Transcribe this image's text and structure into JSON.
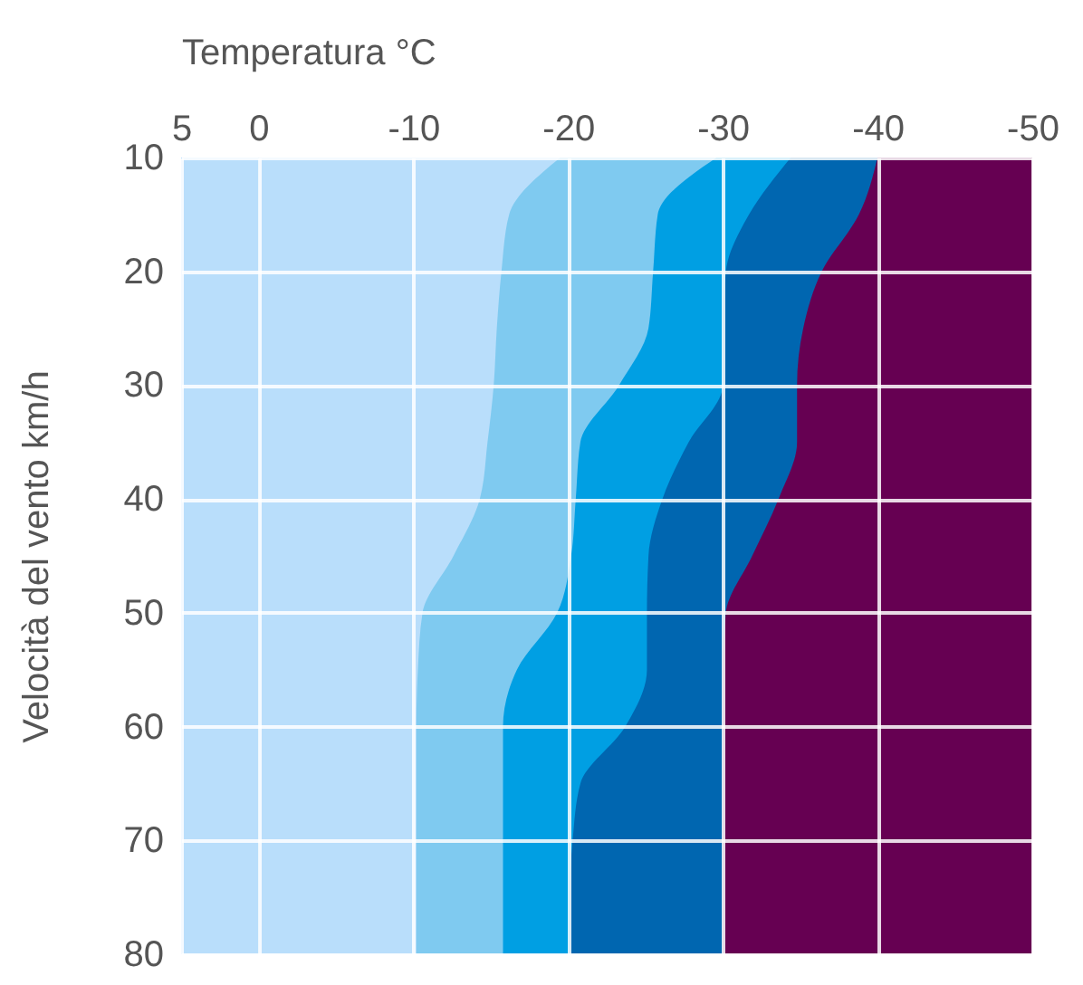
{
  "chart_data": {
    "type": "area",
    "orientation": "horizontal",
    "xlabel": "Temperatura °C",
    "ylabel": "Velocità del vento km/h",
    "x": [
      10,
      15,
      20,
      25,
      30,
      35,
      40,
      45,
      50,
      55,
      60,
      65,
      70,
      75,
      80
    ],
    "series": [
      {
        "color": "#660052",
        "values": [
          -50,
          -50,
          -50,
          -50,
          -50,
          -50,
          -50,
          -50,
          -50,
          -50,
          -50,
          -50,
          -50,
          -50,
          -50
        ]
      },
      {
        "color": "#0066b0",
        "values": [
          -40,
          -38.8,
          -36.4,
          -35.2,
          -34.8,
          -34.8,
          -33.6,
          -31.9,
          -30.2,
          -30,
          -30,
          -30,
          -30,
          -30,
          -30
        ]
      },
      {
        "color": "#009fe3",
        "values": [
          -34.4,
          -31.7,
          -30.2,
          -30,
          -30,
          -27.8,
          -26.1,
          -25.2,
          -25.1,
          -25.1,
          -23.7,
          -20.8,
          -20.3,
          -20.1,
          -20.1
        ]
      },
      {
        "color": "#7fcaf0",
        "values": [
          -29.6,
          -25.8,
          -25.5,
          -25.2,
          -23.3,
          -20.8,
          -20.5,
          -20.2,
          -19.3,
          -16.7,
          -15.8,
          -15.8,
          -15.8,
          -15.8,
          -15.8
        ]
      },
      {
        "color": "#b9defb",
        "values": [
          -19.5,
          -16.2,
          -15.7,
          -15.4,
          -15.2,
          -14.8,
          -14.3,
          -12.6,
          -10.6,
          -10.3,
          -10.2,
          -10.2,
          -10.2,
          -10.2,
          -10.2
        ]
      }
    ],
    "xlim": [
      5,
      -50
    ],
    "xticks": [
      5,
      0,
      -10,
      -20,
      -30,
      -40,
      -50
    ],
    "ylim": [
      80,
      10
    ],
    "yticks": [
      10,
      20,
      30,
      40,
      50,
      60,
      70,
      80
    ],
    "grid": true
  }
}
